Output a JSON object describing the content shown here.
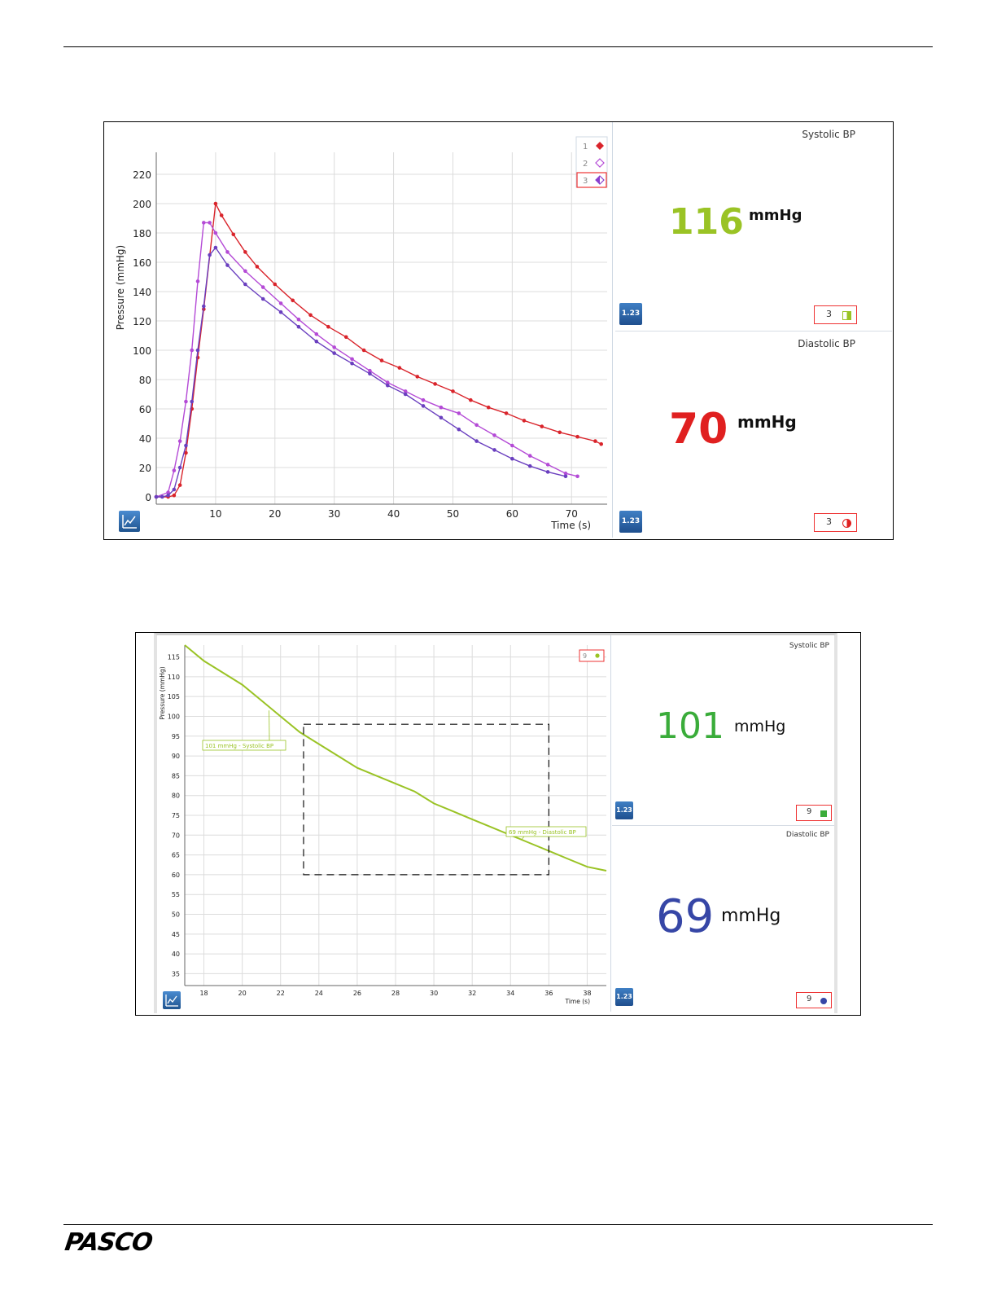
{
  "logo": {
    "text": "PASCO"
  },
  "screen1": {
    "chart_data": {
      "type": "line",
      "xlabel": "Time  (s)",
      "ylabel": "Pressure  (mmHg)",
      "xlim": [
        0,
        76
      ],
      "ylim": [
        -5,
        235
      ],
      "xticks": [
        10,
        20,
        30,
        40,
        50,
        60,
        70
      ],
      "yticks": [
        0,
        20,
        40,
        60,
        80,
        100,
        120,
        140,
        160,
        180,
        200,
        220
      ],
      "grid": true,
      "legend": [
        {
          "label": "1",
          "marker": "filled-diamond",
          "color": "#d9242b",
          "selected": false
        },
        {
          "label": "2",
          "marker": "open-diamond",
          "color": "#b44ad6",
          "selected": false
        },
        {
          "label": "3",
          "marker": "half-diamond",
          "color": "#8a3fcf",
          "selected": true
        }
      ],
      "series": [
        {
          "name": "1",
          "color": "#d9242b",
          "x": [
            0,
            2,
            3,
            4,
            5,
            6,
            7,
            8,
            10,
            11,
            13,
            15,
            17,
            20,
            23,
            26,
            29,
            32,
            35,
            38,
            41,
            44,
            47,
            50,
            53,
            56,
            59,
            62,
            65,
            68,
            71,
            74,
            75
          ],
          "y": [
            0,
            0,
            1,
            8,
            30,
            60,
            95,
            128,
            200,
            192,
            179,
            167,
            157,
            145,
            134,
            124,
            116,
            109,
            100,
            93,
            88,
            82,
            77,
            72,
            66,
            61,
            57,
            52,
            48,
            44,
            41,
            38,
            36
          ]
        },
        {
          "name": "2",
          "color": "#b44ad6",
          "x": [
            0,
            2,
            3,
            4,
            5,
            6,
            7,
            8,
            9,
            10,
            12,
            15,
            18,
            21,
            24,
            27,
            30,
            33,
            36,
            39,
            42,
            45,
            48,
            51,
            54,
            57,
            60,
            63,
            66,
            69,
            71
          ],
          "y": [
            0,
            3,
            18,
            38,
            65,
            100,
            147,
            187,
            187,
            180,
            167,
            154,
            143,
            132,
            121,
            111,
            102,
            94,
            86,
            78,
            72,
            66,
            61,
            57,
            49,
            42,
            35,
            28,
            22,
            16,
            14
          ]
        },
        {
          "name": "3",
          "color": "#6a3fbf",
          "x": [
            0,
            1,
            2,
            3,
            4,
            5,
            6,
            7,
            8,
            9,
            10,
            12,
            15,
            18,
            21,
            24,
            27,
            30,
            33,
            36,
            39,
            42,
            45,
            48,
            51,
            54,
            57,
            60,
            63,
            66,
            69
          ],
          "y": [
            0,
            0,
            1,
            5,
            20,
            35,
            65,
            100,
            130,
            165,
            170,
            158,
            145,
            135,
            126,
            116,
            106,
            98,
            91,
            84,
            76,
            70,
            62,
            54,
            46,
            38,
            32,
            26,
            21,
            17,
            14
          ]
        }
      ]
    },
    "displays": [
      {
        "title": "Systolic BP",
        "value": "116",
        "unit": "mmHg",
        "color": "#9ac325",
        "run": "3",
        "run_icon": "half-square-icon",
        "button": "1.23"
      },
      {
        "title": "Diastolic BP",
        "value": "70",
        "unit": "mmHg",
        "color": "#e02020",
        "run": "3",
        "run_icon": "half-circle-icon",
        "button": "1.23"
      }
    ]
  },
  "screen2": {
    "chart_data": {
      "type": "line",
      "xlabel": "Time  (s)",
      "ylabel": "Pressure (mmHg)",
      "xlim": [
        17,
        39
      ],
      "ylim": [
        32,
        118
      ],
      "xticks": [
        18,
        20,
        22,
        24,
        26,
        28,
        30,
        32,
        34,
        36,
        38
      ],
      "yticks": [
        35,
        40,
        45,
        50,
        55,
        60,
        65,
        70,
        75,
        80,
        85,
        90,
        95,
        100,
        105,
        110,
        115
      ],
      "grid": true,
      "legend": [
        {
          "label": "9",
          "marker": "filled-circle",
          "color": "#9ac325",
          "selected": true
        }
      ],
      "series": [
        {
          "name": "9",
          "color": "#9ac325",
          "x": [
            17,
            18,
            19,
            20,
            21,
            22,
            23,
            24,
            25,
            26,
            27,
            28,
            29,
            30,
            31,
            32,
            33,
            34,
            35,
            36,
            37,
            38,
            39
          ],
          "y": [
            118,
            114,
            111,
            108,
            104,
            100,
            96,
            93,
            90,
            87,
            85,
            83,
            81,
            78,
            76,
            74,
            72,
            70,
            68,
            66,
            64,
            62,
            61
          ]
        }
      ],
      "annotations": [
        {
          "text": "101 mmHg - Systolic BP",
          "x": 21.4,
          "y": 101.5
        },
        {
          "text": "69 mmHg - Diastolic BP",
          "x": 34.6,
          "y": 69
        }
      ],
      "selection_box": {
        "x": [
          23.2,
          36
        ],
        "y": [
          60,
          98
        ]
      }
    },
    "displays": [
      {
        "title": "Systolic BP",
        "value": "101",
        "unit": "mmHg",
        "color": "#3aac3a",
        "run": "9",
        "run_icon": "square-icon",
        "button": "1.23"
      },
      {
        "title": "Diastolic BP",
        "value": "69",
        "unit": "mmHg",
        "color": "#3646a6",
        "run": "9",
        "run_icon": "circle-icon",
        "button": "1.23"
      }
    ]
  }
}
